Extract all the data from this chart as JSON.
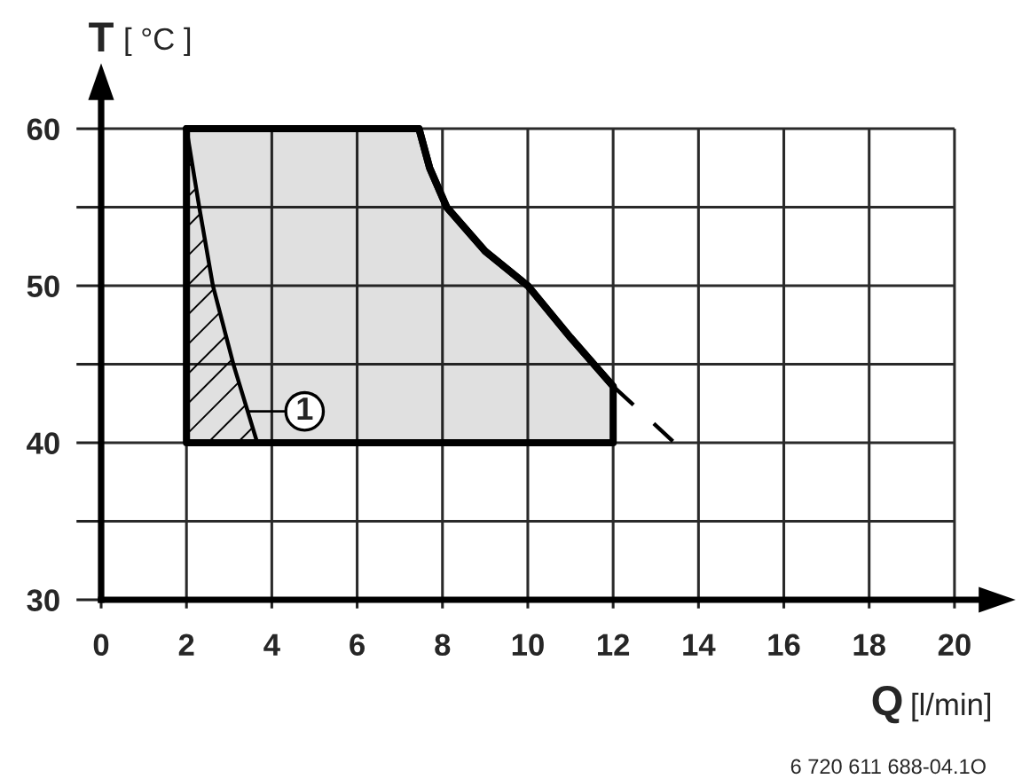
{
  "chart_data": {
    "type": "line",
    "xlabel": "Q [l/min]",
    "ylabel": "T [ °C ]",
    "xlim": [
      0,
      21
    ],
    "ylim": [
      30,
      63
    ],
    "xticks": [
      0,
      2,
      4,
      6,
      8,
      10,
      12,
      14,
      16,
      18,
      20
    ],
    "yticks": [
      30,
      {
        "value": 35,
        "label": null
      },
      40,
      {
        "value": 45,
        "label": null
      },
      50,
      {
        "value": 55,
        "label": null
      },
      60
    ],
    "grid": true,
    "series": [
      {
        "color": "#000000",
        "x": [
          2,
          7.45,
          7.7,
          8.1,
          9,
          10,
          11,
          12
        ],
        "values": [
          60,
          60,
          57.5,
          55,
          52.2,
          50,
          46.7,
          43.6
        ],
        "lower": [
          40,
          40,
          40,
          40,
          40,
          40,
          40,
          40
        ],
        "upper": [
          60,
          60,
          57.5,
          55,
          52.2,
          50,
          46.7,
          43.6
        ]
      },
      {
        "color": "#000000",
        "x": [
          2,
          2.3,
          2.62,
          3.1,
          3.66
        ],
        "values": [
          60,
          55,
          50,
          45,
          40
        ],
        "lower": [
          40,
          40,
          40,
          40,
          40
        ],
        "upper": [
          60,
          55,
          50,
          45,
          40
        ]
      },
      {
        "color": "#000000",
        "line_style": "dashed",
        "x": [
          12,
          13.4
        ],
        "values": [
          43.6,
          40.1
        ]
      }
    ],
    "annotations": [
      {
        "text": "1",
        "x": 3.44,
        "y": 42
      },
      "6 720 611 688-04.1O"
    ]
  }
}
